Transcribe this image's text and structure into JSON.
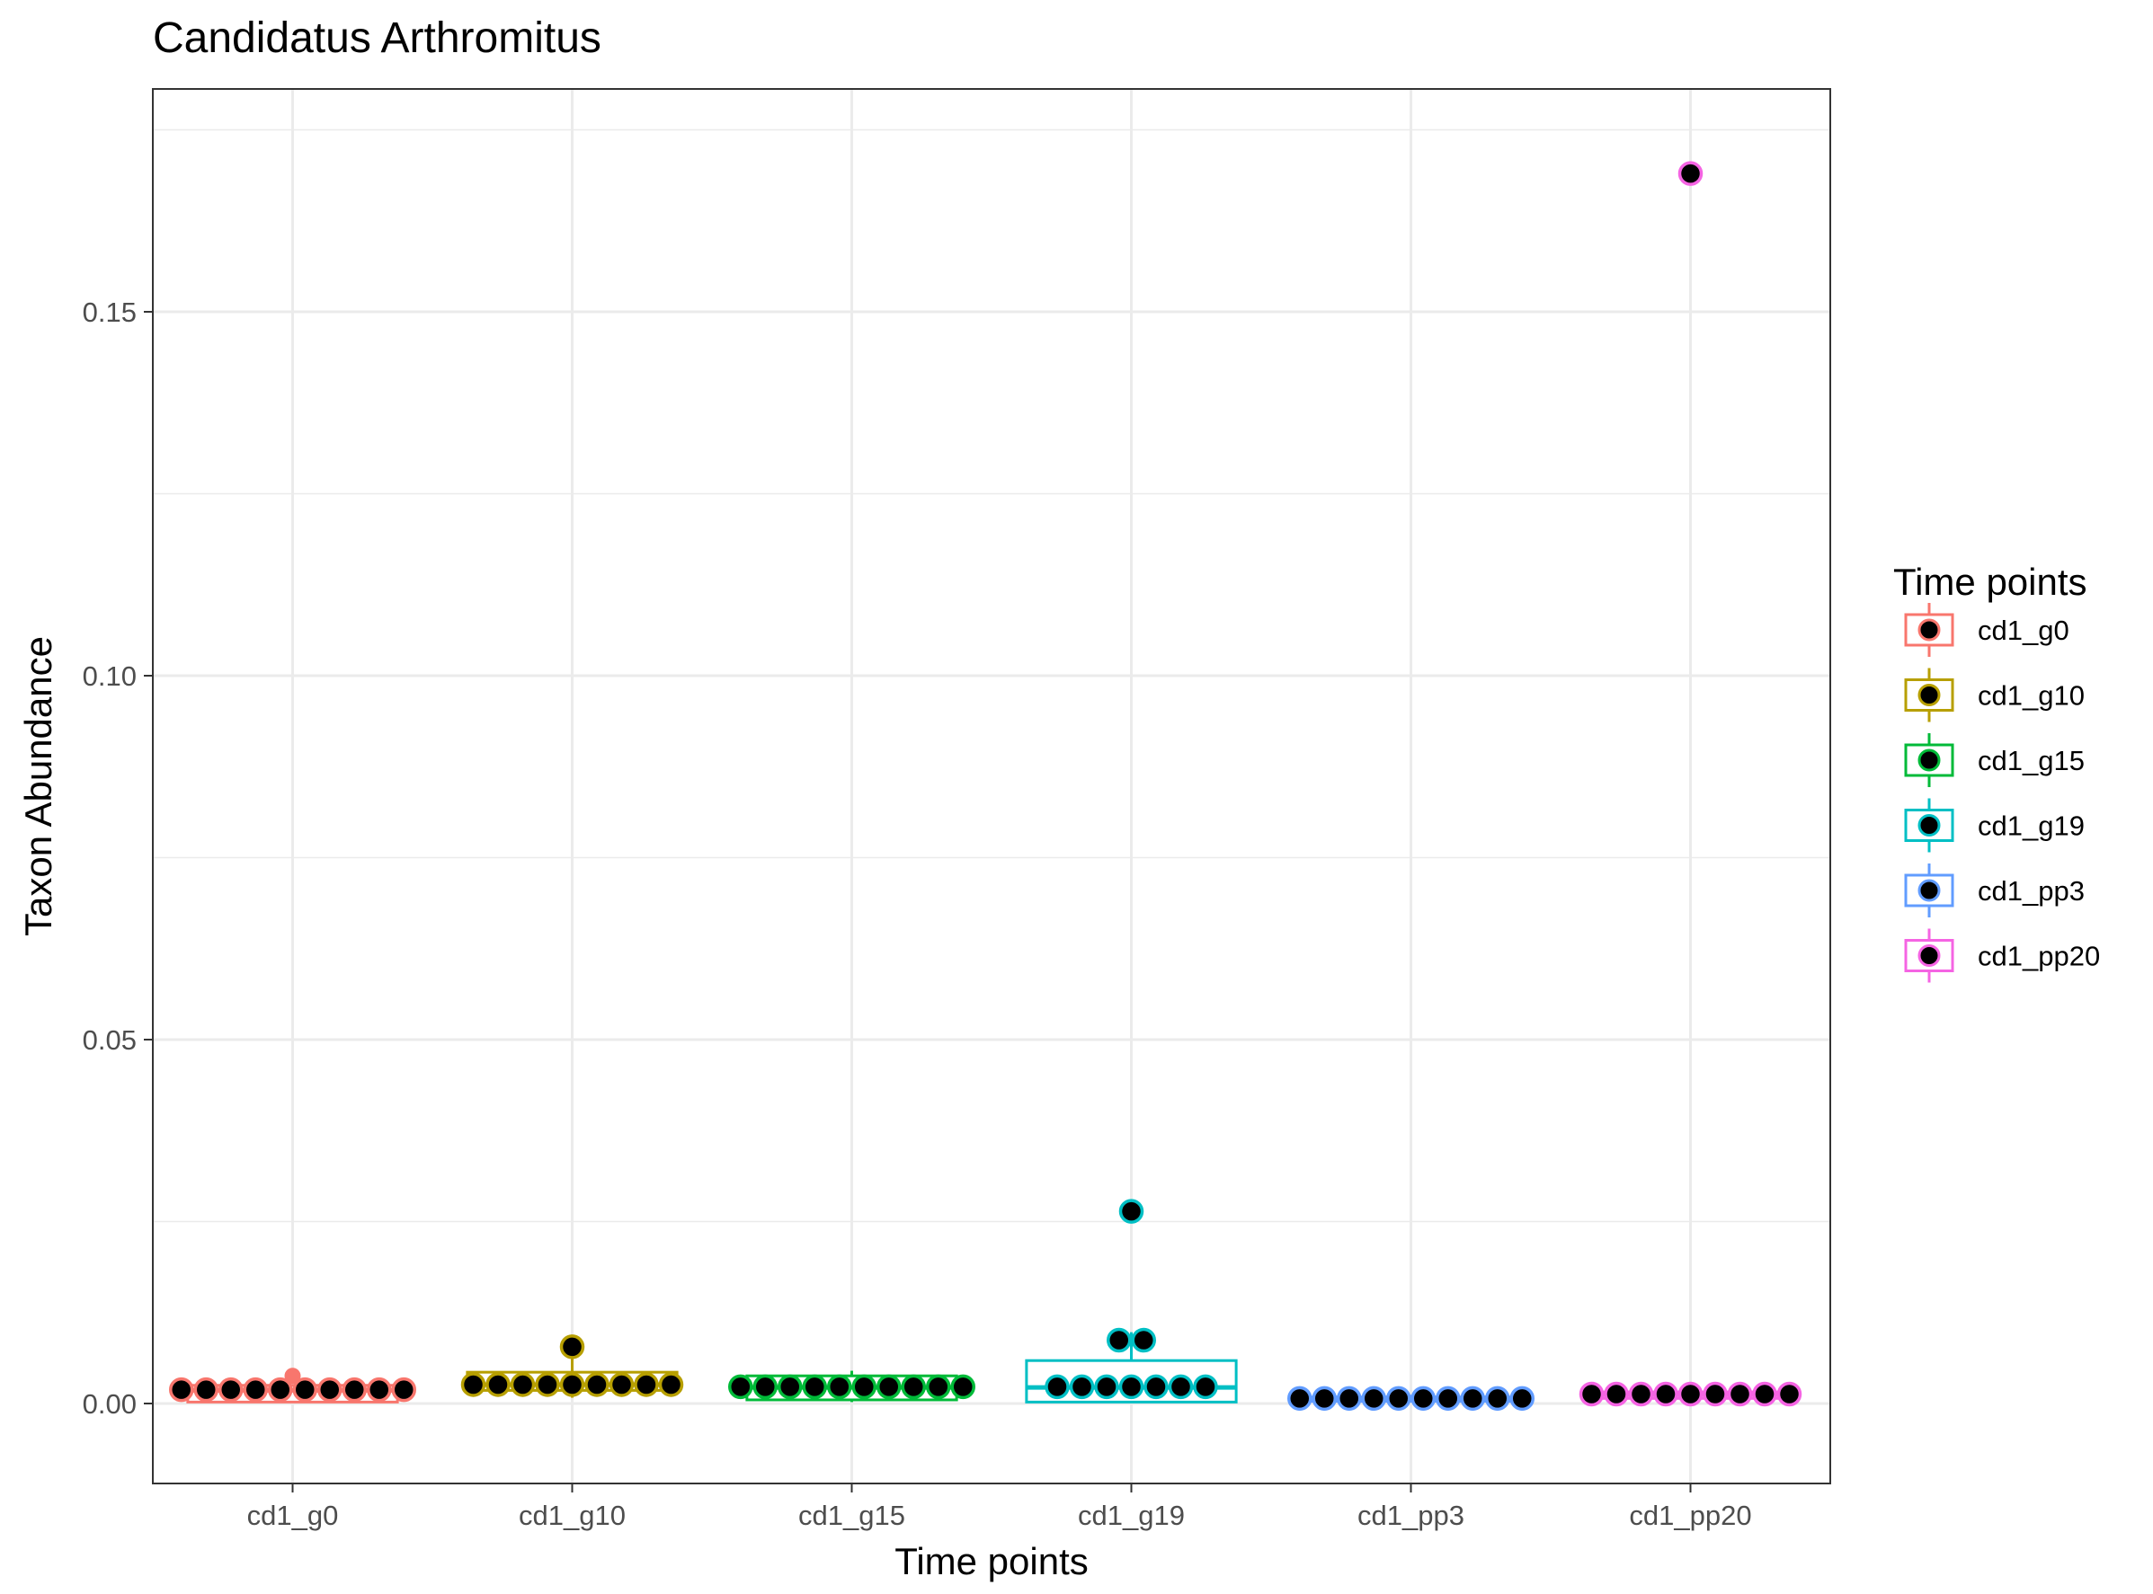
{
  "chart_data": {
    "type": "box",
    "title": "Candidatus Arthromitus",
    "xlabel": "Time points",
    "ylabel": "Taxon Abundance",
    "ylim": [
      -0.01,
      0.178
    ],
    "yticks": [
      0.0,
      0.05,
      0.1,
      0.15
    ],
    "ytick_labels": [
      "0.00",
      "0.05",
      "0.10",
      "0.15"
    ],
    "grid": true,
    "legend": {
      "title": "Time points",
      "position": "right"
    },
    "categories": [
      "cd1_g0",
      "cd1_g10",
      "cd1_g15",
      "cd1_g19",
      "cd1_pp3",
      "cd1_pp20"
    ],
    "colors": [
      "#F8766D",
      "#B79F00",
      "#00BA38",
      "#00BFC4",
      "#619CFF",
      "#F564E3"
    ],
    "series": [
      {
        "name": "cd1_g0",
        "box": {
          "min": 0.0002,
          "q1": 0.0002,
          "median": 0.0018,
          "q3": 0.0025,
          "max": 0.0025
        },
        "outliers": [
          0.0038
        ],
        "points": [
          0.0019,
          0.0019,
          0.0019,
          0.0019,
          0.0019,
          0.0019,
          0.0019,
          0.0019,
          0.0019,
          0.0019
        ]
      },
      {
        "name": "cd1_g10",
        "box": {
          "min": 0.0008,
          "q1": 0.0018,
          "median": 0.0026,
          "q3": 0.0043,
          "max": 0.0078
        },
        "outliers": [],
        "points": [
          0.0026,
          0.0026,
          0.0026,
          0.0026,
          0.0026,
          0.0026,
          0.0026,
          0.0026,
          0.0026,
          0.0078
        ]
      },
      {
        "name": "cd1_g15",
        "box": {
          "min": 0.0002,
          "q1": 0.0005,
          "median": 0.0022,
          "q3": 0.0038,
          "max": 0.0045
        },
        "outliers": [],
        "points": [
          0.0023,
          0.0023,
          0.0023,
          0.0023,
          0.0023,
          0.0023,
          0.0023,
          0.0023,
          0.0023,
          0.0023
        ]
      },
      {
        "name": "cd1_g19",
        "box": {
          "min": 0.0002,
          "q1": 0.0002,
          "median": 0.0022,
          "q3": 0.0059,
          "max": 0.0098
        },
        "outliers": [
          0.0264
        ],
        "points": [
          0.0023,
          0.0023,
          0.0023,
          0.0023,
          0.0023,
          0.0023,
          0.0023,
          0.0087,
          0.0087,
          0.0264
        ]
      },
      {
        "name": "cd1_pp3",
        "box": {
          "min": 0.0002,
          "q1": 0.0003,
          "median": 0.0006,
          "q3": 0.0009,
          "max": 0.0012
        },
        "outliers": [],
        "points": [
          0.0007,
          0.0007,
          0.0007,
          0.0007,
          0.0007,
          0.0007,
          0.0007,
          0.0007,
          0.0007,
          0.0007
        ]
      },
      {
        "name": "cd1_pp20",
        "box": {
          "min": 0.0004,
          "q1": 0.0007,
          "median": 0.0012,
          "q3": 0.0016,
          "max": 0.0022
        },
        "outliers": [],
        "points": [
          0.0013,
          0.0013,
          0.0013,
          0.0013,
          0.0013,
          0.0013,
          0.0013,
          0.0013,
          0.0013,
          0.169
        ]
      }
    ]
  }
}
